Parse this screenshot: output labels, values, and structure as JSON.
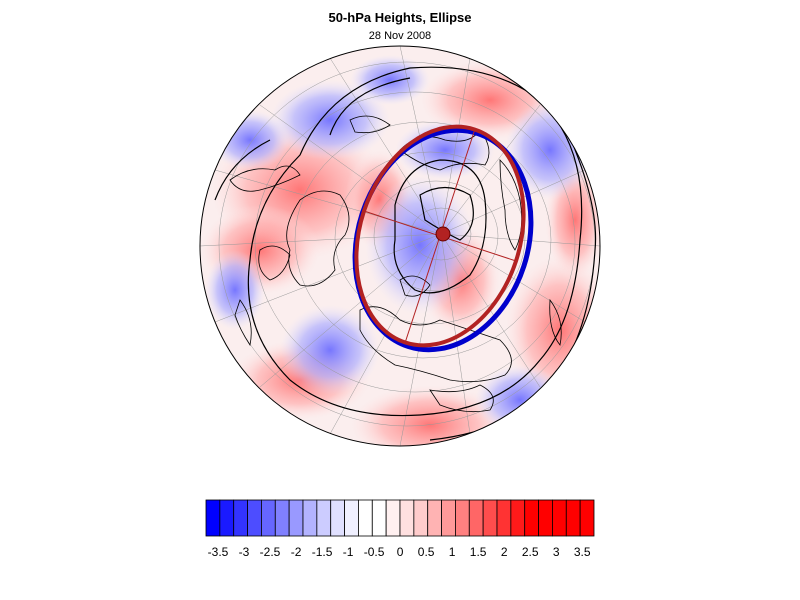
{
  "header": {
    "title": "50-hPa Heights, Ellipse",
    "date": "28 Nov 2008"
  },
  "map": {
    "projection": "orthographic (polar, Northern Hemisphere)",
    "field": "standardized 50-hPa height anomaly",
    "features": [
      "coastlines",
      "lat-lon grid",
      "height contours",
      "fitted ellipse",
      "ellipse axes",
      "ellipse centre"
    ],
    "contour_color": "#000000",
    "fitted_ellipse_color": "#b22222",
    "vortex_edge_color": "#0000cc",
    "centre_marker_color": "#b22222"
  },
  "colorbar": {
    "levels": [
      -3.5,
      -3.25,
      -3,
      -2.75,
      -2.5,
      -2.25,
      -2,
      -1.75,
      -1.5,
      -1.25,
      -1,
      -0.75,
      -0.5,
      -0.25,
      0,
      0.25,
      0.5,
      0.75,
      1,
      1.25,
      1.5,
      1.75,
      2,
      2.25,
      2.5,
      2.75,
      3,
      3.25,
      3.5
    ],
    "tick_labels": [
      "-3.5",
      "-3",
      "-2.5",
      "-2",
      "-1.5",
      "-1",
      "-0.5",
      "0",
      "0.5",
      "1",
      "1.5",
      "2",
      "2.5",
      "3",
      "3.5"
    ],
    "colors": [
      "#0000ff",
      "#1a1aff",
      "#3333ff",
      "#4d4dff",
      "#6666ff",
      "#8080ff",
      "#9999ff",
      "#b3b3ff",
      "#ccccff",
      "#e0e0ff",
      "#f0f0ff",
      "#ffffff",
      "#ffffff",
      "#fff0f0",
      "#ffe0e0",
      "#ffcccc",
      "#ffb3b3",
      "#ff9999",
      "#ff8080",
      "#ff6666",
      "#ff4d4d",
      "#ff3333",
      "#ff1a1a",
      "#ff0000",
      "#ff0000",
      "#ff0000",
      "#ff0000",
      "#ff0000"
    ]
  }
}
